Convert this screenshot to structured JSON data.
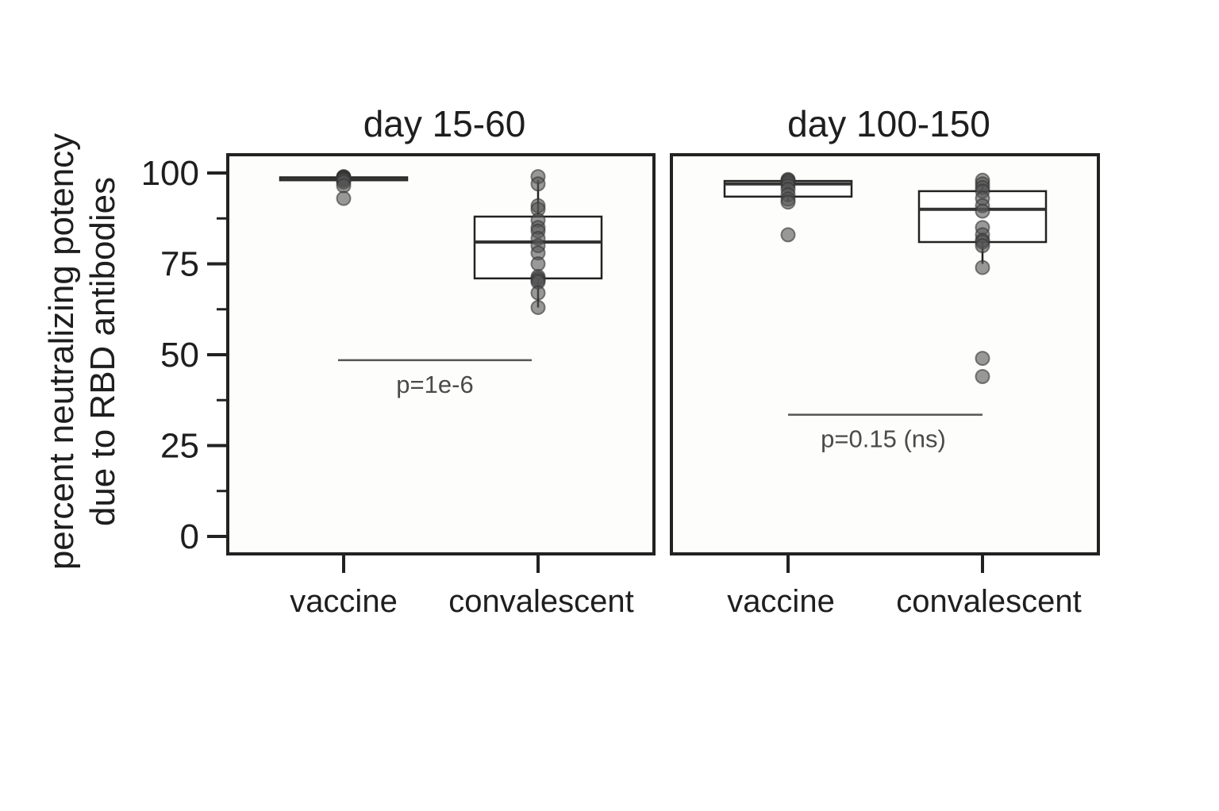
{
  "chart_data": {
    "type": "box",
    "ylabel_line1": "percent neutralizing potency",
    "ylabel_line2": "due to RBD antibodies",
    "ylim": [
      -5,
      105
    ],
    "yticks_major": [
      0,
      25,
      50,
      75,
      100
    ],
    "yticks_minor": [
      12.5,
      37.5,
      62.5,
      87.5
    ],
    "yticklabels": [
      "0",
      "25",
      "50",
      "75",
      "100"
    ],
    "grid": false,
    "point_color": "#555555",
    "panels": [
      {
        "title": "day 15-60",
        "categories": [
          "vaccine",
          "convalescent"
        ],
        "boxes": [
          {
            "q1": 98,
            "median": 98.3,
            "q3": 98.8,
            "whisker_low": 97.5,
            "whisker_high": 99,
            "points": [
              99,
              98.9,
              98.8,
              98.7,
              98.6,
              98.5,
              98.4,
              98.3,
              98.2,
              98,
              97.5,
              96.5,
              93
            ]
          },
          {
            "q1": 71,
            "median": 81,
            "q3": 88,
            "whisker_low": 63,
            "whisker_high": 98,
            "points": [
              99,
              97,
              91,
              90,
              87,
              85,
              84,
              82,
              80,
              78,
              75,
              71.5,
              71,
              70.5,
              70,
              67,
              63
            ]
          }
        ],
        "pvalue": "p=1e-6",
        "bracket_y": 48.5
      },
      {
        "title": "day 100-150",
        "categories": [
          "vaccine",
          "convalescent"
        ],
        "boxes": [
          {
            "q1": 93.5,
            "median": 97,
            "q3": 97.8,
            "whisker_low": 92,
            "whisker_high": 98,
            "points": [
              98.2,
              98,
              97.7,
              97.2,
              96.5,
              95.5,
              94,
              92.8,
              92,
              83
            ]
          },
          {
            "q1": 81,
            "median": 90,
            "q3": 95,
            "whisker_low": 75,
            "whisker_high": 97,
            "points": [
              98,
              97,
              96,
              95,
              93,
              91,
              89.5,
              85,
              83,
              81.5,
              81,
              80,
              74,
              49,
              44
            ]
          }
        ],
        "pvalue": "p=0.15 (ns)",
        "bracket_y": 33.5
      }
    ]
  }
}
